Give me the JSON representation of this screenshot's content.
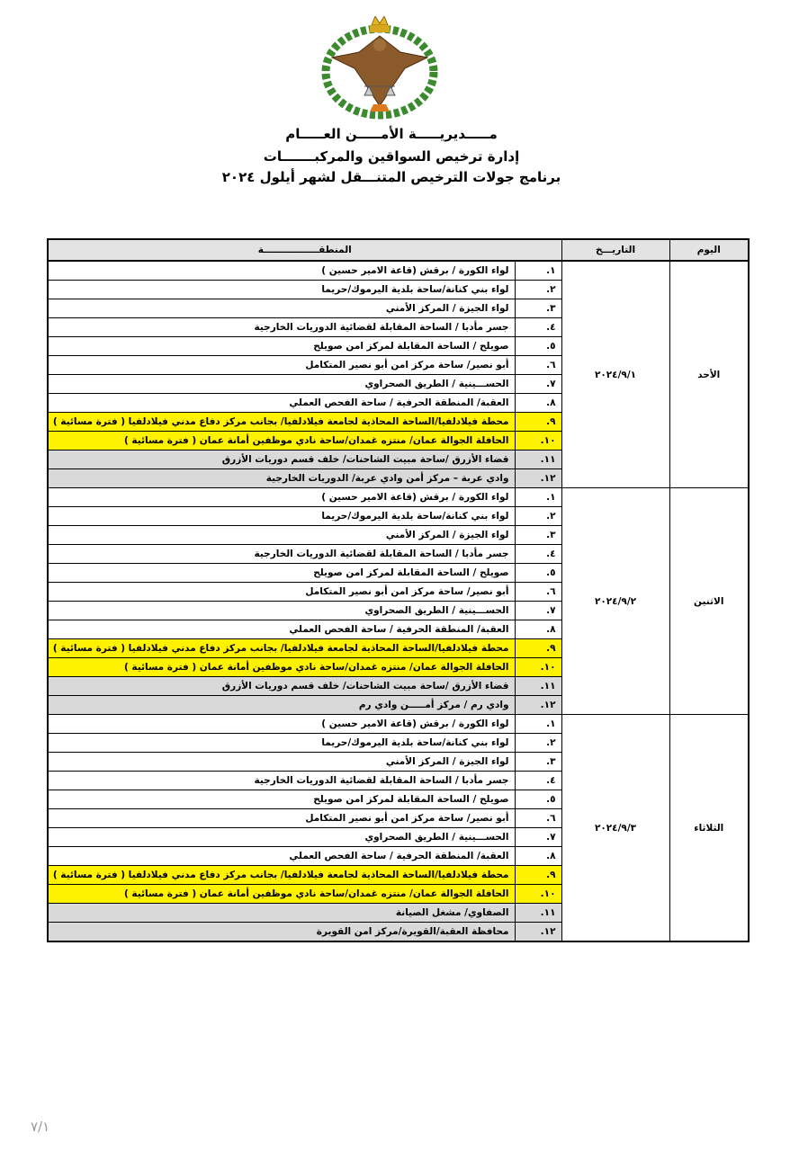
{
  "header": {
    "title": "مـــــديريـــــة الأمـــــن العـــــام",
    "subtitle": "إدارة ترخيص السواقين والمركبـــــــات",
    "program": "برنامج جولات الترخيص المتنـــقل لشهر أيلول ٢٠٢٤"
  },
  "table": {
    "columns": {
      "day": "اليوم",
      "date": "التاريـــخ",
      "area": "المنطقـــــــــــــــــة"
    },
    "days": [
      {
        "day": "الأحد",
        "date": "٢٠٢٤/٩/١",
        "rows": [
          {
            "num": "١.",
            "area": "لواء الكورة / برقش (قاعة الامير حسين )"
          },
          {
            "num": "٢.",
            "area": "لواء بني كنانة/ساحة بلدية اليرموك/حريما"
          },
          {
            "num": "٣.",
            "area": "لواء الجيزة / المركز الأمني"
          },
          {
            "num": "٤.",
            "area": "جسر مأدبا / الساحة المقابلة لقضائية الدوريات الخارجية"
          },
          {
            "num": "٥.",
            "area": "صويلح / الساحة المقابلة لمركز امن صويلح"
          },
          {
            "num": "٦.",
            "area": "أبو نصير/ ساحة مركز امن أبو نصير المتكامل"
          },
          {
            "num": "٧.",
            "area": "الحســـينية / الطريق الصحراوي"
          },
          {
            "num": "٨.",
            "area": "العقبة/ المنطقة الحرفية / ساحة الفحص العملي"
          },
          {
            "num": "٩.",
            "area": "محطة فيلادلفيا/الساحة المحاذية لجامعة فيلادلفيا/ بجانب مركز دفاع مدني فيلادلفيا ( فترة مسائية )"
          },
          {
            "num": "١٠.",
            "area": "الحافلة الجوالة عمان/ منتزه غمدان/ساحة نادي موظفين أمانة عمان ( فترة مسائية )"
          },
          {
            "num": "١١.",
            "area": "قضاء الأزرق /ساحة مبيت الشاحنات/ خلف قسم دوريات الأزرق"
          },
          {
            "num": "١٢.",
            "area": "وادي عربة – مركز أمن وادي عربة/ الدوريات الخارجية"
          }
        ]
      },
      {
        "day": "الاثنين",
        "date": "٢٠٢٤/٩/٢",
        "rows": [
          {
            "num": "١.",
            "area": "لواء الكورة / برقش (قاعة الامير حسين )"
          },
          {
            "num": "٢.",
            "area": "لواء بني كنانة/ساحة بلدية اليرموك/حريما"
          },
          {
            "num": "٣.",
            "area": "لواء الجيزة / المركز الأمني"
          },
          {
            "num": "٤.",
            "area": "جسر مأدبا / الساحة المقابلة لقضائية الدوريات الخارجية"
          },
          {
            "num": "٥.",
            "area": "صويلح / الساحة المقابلة لمركز امن صويلح"
          },
          {
            "num": "٦.",
            "area": "أبو نصير/ ساحة مركز امن أبو نصير المتكامل"
          },
          {
            "num": "٧.",
            "area": "الحســـينية / الطريق الصحراوي"
          },
          {
            "num": "٨.",
            "area": "العقبة/ المنطقة الحرفية / ساحة الفحص العملي"
          },
          {
            "num": "٩.",
            "area": "محطة فيلادلفيا/الساحة المحاذية لجامعة فيلادلفيا/ بجانب مركز دفاع مدني فيلادلفيا ( فترة مسائية )"
          },
          {
            "num": "١٠.",
            "area": "الحافلة الجوالة عمان/ منتزه غمدان/ساحة نادي موظفين أمانة عمان ( فترة مسائية )"
          },
          {
            "num": "١١.",
            "area": "قضاء الأزرق /ساحة مبيت الشاحنات/ خلف قسم دوريات الأزرق"
          },
          {
            "num": "١٢.",
            "area": "وادي رم / مركز أمـــــن وادي رم"
          }
        ]
      },
      {
        "day": "الثلاثاء",
        "date": "٢٠٢٤/٩/٣",
        "rows": [
          {
            "num": "١.",
            "area": "لواء الكورة / برقش (قاعة الامير حسين )"
          },
          {
            "num": "٢.",
            "area": "لواء بني كنانة/ساحة بلدية اليرموك/حريما"
          },
          {
            "num": "٣.",
            "area": "لواء الجيزة / المركز الأمني"
          },
          {
            "num": "٤.",
            "area": "جسر مأدبا / الساحة المقابلة لقضائية الدوريات الخارجية"
          },
          {
            "num": "٥.",
            "area": "صويلح / الساحة المقابلة لمركز امن صويلح"
          },
          {
            "num": "٦.",
            "area": "أبو نصير/ ساحة مركز امن أبو نصير المتكامل"
          },
          {
            "num": "٧.",
            "area": "الحســـينية / الطريق الصحراوي"
          },
          {
            "num": "٨.",
            "area": "العقبة/ المنطقة الحرفية / ساحة الفحص العملي"
          },
          {
            "num": "٩.",
            "area": "محطة فيلادلفيا/الساحة المحاذية لجامعة فيلادلفيا/ بجانب مركز دفاع مدني فيلادلفيا ( فترة مسائية )"
          },
          {
            "num": "١٠.",
            "area": "الحافلة الجوالة عمان/ منتزه غمدان/ساحة نادي موظفين أمانة عمان ( فترة مسائية )"
          },
          {
            "num": "١١.",
            "area": "الصفاوي/ مشغل الصيانة"
          },
          {
            "num": "١٢.",
            "area": "محافظة العقبة/القويرة/مركز امن القويرة"
          }
        ]
      }
    ]
  },
  "footer": {
    "page": "٧/١"
  }
}
